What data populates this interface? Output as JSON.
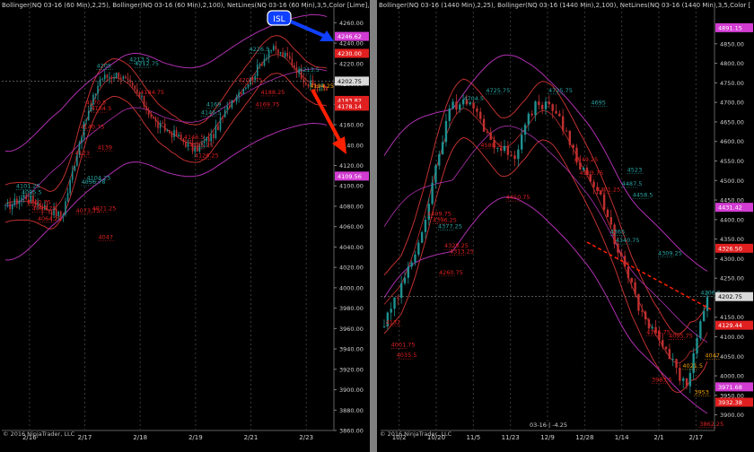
{
  "left": {
    "header": "Bollinger(NQ 03-16 (60 Min),2,25), Bollinger(NQ 03-16 (60 Min),2,100), NetLines(NQ 03-16 (60 Min),3,5,Color [Lime],C",
    "copyright": "© 2016 NinjaTrader, LLC",
    "callout": "ISL",
    "chart_data": {
      "type": "line",
      "description_type": "candlestick with Bollinger bands",
      "ylim": [
        3860,
        4270
      ],
      "yticks": [
        3860,
        3880,
        3900,
        3920,
        3940,
        3960,
        3980,
        4000,
        4020,
        4040,
        4060,
        4080,
        4100,
        4120,
        4140,
        4160,
        4180,
        4200,
        4220,
        4240,
        4260
      ],
      "xticks": [
        "2/16",
        "2/17",
        "2/18",
        "2/19",
        "2/21",
        "2/23"
      ],
      "last_price": 4202.75,
      "price_badges": [
        {
          "value": "4246.62",
          "color": "#d23cd2"
        },
        {
          "value": "4230.00",
          "color": "#e02020"
        },
        {
          "value": "4202.75",
          "color": "#d9d9d9"
        },
        {
          "value": "4183.82",
          "color": "#e02020"
        },
        {
          "value": "4178.14",
          "color": "#e02020"
        },
        {
          "value": "4109.56",
          "color": "#d23cd2"
        }
      ],
      "annotations": [
        {
          "text": "4101.25",
          "c": "teal",
          "x": "2/16",
          "y": 4098
        },
        {
          "text": "4095.5",
          "c": "teal",
          "x": "2/16",
          "y": 4092
        },
        {
          "text": "4060.75",
          "c": "red",
          "x": "2/16",
          "y": 4082
        },
        {
          "text": "4085.75",
          "c": "red",
          "x": "2/16",
          "y": 4076
        },
        {
          "text": "4064.25",
          "c": "red",
          "x": "2/16",
          "y": 4066
        },
        {
          "text": "4047",
          "c": "red",
          "x": "2/17",
          "y": 4048
        },
        {
          "text": "4073.75",
          "c": "red",
          "x": "2/17",
          "y": 4074
        },
        {
          "text": "4056.78",
          "c": "teal",
          "x": "2/17",
          "y": 4102
        },
        {
          "text": "4104.25",
          "c": "teal",
          "x": "2/17",
          "y": 4106
        },
        {
          "text": "4021.25",
          "c": "red",
          "x": "2/17",
          "y": 4076
        },
        {
          "text": "4139",
          "c": "red",
          "x": "2/17",
          "y": 4136
        },
        {
          "text": "4123",
          "c": "red",
          "x": "2/17",
          "y": 4130
        },
        {
          "text": "4140.75",
          "c": "red",
          "x": "2/17",
          "y": 4156
        },
        {
          "text": "4170.5",
          "c": "red",
          "x": "2/17",
          "y": 4180
        },
        {
          "text": "4164.5",
          "c": "red",
          "x": "2/17",
          "y": 4174
        },
        {
          "text": "4205",
          "c": "teal",
          "x": "2/17",
          "y": 4216
        },
        {
          "text": "4213.5",
          "c": "teal",
          "x": "2/18",
          "y": 4222
        },
        {
          "text": "4212.75",
          "c": "teal",
          "x": "2/18",
          "y": 4218
        },
        {
          "text": "4184.75",
          "c": "red",
          "x": "2/18",
          "y": 4190
        },
        {
          "text": "4146.5",
          "c": "teal",
          "x": "2/19",
          "y": 4170
        },
        {
          "text": "4169",
          "c": "teal",
          "x": "2/19",
          "y": 4178
        },
        {
          "text": "4146.5",
          "c": "red",
          "x": "2/19",
          "y": 4146
        },
        {
          "text": "4135.75",
          "c": "red",
          "x": "2/19",
          "y": 4138
        },
        {
          "text": "4126.25",
          "c": "red",
          "x": "2/19",
          "y": 4128
        },
        {
          "text": "4169.75",
          "c": "red",
          "x": "2/21",
          "y": 4178
        },
        {
          "text": "4188.25",
          "c": "red",
          "x": "2/21",
          "y": 4190
        },
        {
          "text": "4207.75",
          "c": "red",
          "x": "2/21",
          "y": 4202
        },
        {
          "text": "4213.5",
          "c": "teal",
          "x": "2/23",
          "y": 4212
        },
        {
          "text": "4226.5",
          "c": "teal",
          "x": "2/21",
          "y": 4232
        },
        {
          "text": "4194.25",
          "c": "orange",
          "x": "2/23",
          "y": 4196
        }
      ]
    }
  },
  "right": {
    "header": "Bollinger(NQ 03-16 (1440 Min),2,25), Bollinger(NQ 03-16 (1440 Min),2,100), NetLines(NQ 03-16 (1440 Min),3,5,Color [",
    "copyright": "© 2016 NinjaTrader, LLC",
    "footer_info": "03-16 | -4.25",
    "chart_data": {
      "type": "line",
      "description_type": "candlestick with Bollinger bands",
      "ylim": [
        3860,
        4930
      ],
      "yticks": [
        3900,
        3950,
        4000,
        4050,
        4100,
        4150,
        4200,
        4250,
        4300,
        4350,
        4400,
        4450,
        4500,
        4550,
        4600,
        4650,
        4700,
        4750,
        4800,
        4850
      ],
      "xticks": [
        "10/2",
        "10/20",
        "11/5",
        "11/23",
        "12/9",
        "12/28",
        "1/14",
        "2/1",
        "2/17"
      ],
      "last_price": 4202.75,
      "price_badges": [
        {
          "value": "4891.15",
          "color": "#d23cd2"
        },
        {
          "value": "4431.42",
          "color": "#d23cd2"
        },
        {
          "value": "4326.50",
          "color": "#e02020"
        },
        {
          "value": "4202.75",
          "color": "#d9d9d9"
        },
        {
          "value": "4129.44",
          "color": "#e02020"
        },
        {
          "value": "3971.68",
          "color": "#d23cd2"
        },
        {
          "value": "3932.38",
          "color": "#e02020"
        }
      ],
      "annotations": [
        {
          "text": "4132",
          "c": "red",
          "x": "10/2",
          "y": 4132
        },
        {
          "text": "4001.75",
          "c": "red",
          "x": "10/2",
          "y": 4075
        },
        {
          "text": "4035.5",
          "c": "red",
          "x": "10/2",
          "y": 4048
        },
        {
          "text": "4260.75",
          "c": "red",
          "x": "10/20",
          "y": 4260
        },
        {
          "text": "4328.25",
          "c": "red",
          "x": "10/20",
          "y": 4328
        },
        {
          "text": "4313.25",
          "c": "red",
          "x": "10/20",
          "y": 4314
        },
        {
          "text": "4409.75",
          "c": "red",
          "x": "10/20",
          "y": 4410
        },
        {
          "text": "4396.25",
          "c": "red",
          "x": "10/20",
          "y": 4394
        },
        {
          "text": "4377.25",
          "c": "teal",
          "x": "10/20",
          "y": 4378
        },
        {
          "text": "4588.5",
          "c": "red",
          "x": "11/5",
          "y": 4586
        },
        {
          "text": "4725.75",
          "c": "teal",
          "x": "11/5",
          "y": 4726
        },
        {
          "text": "4704.5",
          "c": "teal",
          "x": "11/5",
          "y": 4705
        },
        {
          "text": "4450.75",
          "c": "red",
          "x": "11/23",
          "y": 4452
        },
        {
          "text": "4725.75",
          "c": "teal",
          "x": "12/9",
          "y": 4726
        },
        {
          "text": "4695",
          "c": "teal",
          "x": "12/28",
          "y": 4695
        },
        {
          "text": "4471.25",
          "c": "red",
          "x": "12/28",
          "y": 4472
        },
        {
          "text": "4549.25",
          "c": "red",
          "x": "12/28",
          "y": 4549
        },
        {
          "text": "4513.75",
          "c": "red",
          "x": "12/28",
          "y": 4514
        },
        {
          "text": "4487.5",
          "c": "teal",
          "x": "1/14",
          "y": 4487
        },
        {
          "text": "4523",
          "c": "teal",
          "x": "1/14",
          "y": 4523
        },
        {
          "text": "4458.5",
          "c": "teal",
          "x": "1/14",
          "y": 4458
        },
        {
          "text": "4365",
          "c": "teal",
          "x": "1/14",
          "y": 4364
        },
        {
          "text": "4340.75",
          "c": "teal",
          "x": "1/14",
          "y": 4342
        },
        {
          "text": "4309.25",
          "c": "teal",
          "x": "2/1",
          "y": 4309
        },
        {
          "text": "4206.5",
          "c": "teal",
          "x": "2/17",
          "y": 4208
        },
        {
          "text": "4095.75",
          "c": "red",
          "x": "2/1",
          "y": 4098
        },
        {
          "text": "4106.75",
          "c": "red",
          "x": "2/1",
          "y": 4107
        },
        {
          "text": "3983.5",
          "c": "red",
          "x": "2/1",
          "y": 3985
        },
        {
          "text": "3953",
          "c": "orange",
          "x": "2/17",
          "y": 3953
        },
        {
          "text": "3862.25",
          "c": "red",
          "x": "2/17",
          "y": 3872
        },
        {
          "text": "4047",
          "c": "orange",
          "x": "2/17",
          "y": 4047
        },
        {
          "text": "4021.5",
          "c": "orange",
          "x": "2/17",
          "y": 4021
        }
      ]
    }
  },
  "colors": {
    "bull": "#1f9090",
    "bear": "#c03030",
    "upper_band": "#c03030",
    "mid": "#c03030",
    "long_band": "#b030b0",
    "teal": "#2aa5a5",
    "red": "#e02020",
    "orange": "#f0a000",
    "arrow_blue": "#1040ff",
    "arrow_red": "#ff2000"
  }
}
